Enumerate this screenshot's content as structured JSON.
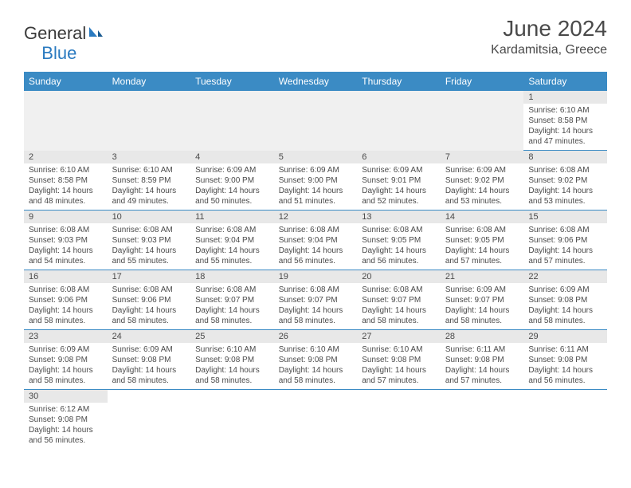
{
  "header": {
    "logo_general": "General",
    "logo_blue": "Blue",
    "month_year": "June 2024",
    "location": "Kardamitsia, Greece"
  },
  "colors": {
    "header_bg": "#3b8bc4",
    "header_text": "#ffffff",
    "daynum_bg": "#e8e8e8",
    "border": "#3b8bc4",
    "text": "#4a4a4a",
    "logo_general": "#3a3a3a",
    "logo_blue": "#2a7ac0"
  },
  "day_labels": [
    "Sunday",
    "Monday",
    "Tuesday",
    "Wednesday",
    "Thursday",
    "Friday",
    "Saturday"
  ],
  "weeks": [
    [
      null,
      null,
      null,
      null,
      null,
      null,
      {
        "num": "1",
        "sunrise": "6:10 AM",
        "sunset": "8:58 PM",
        "daylight_hours": "14",
        "daylight_mins": "47"
      }
    ],
    [
      {
        "num": "2",
        "sunrise": "6:10 AM",
        "sunset": "8:58 PM",
        "daylight_hours": "14",
        "daylight_mins": "48"
      },
      {
        "num": "3",
        "sunrise": "6:10 AM",
        "sunset": "8:59 PM",
        "daylight_hours": "14",
        "daylight_mins": "49"
      },
      {
        "num": "4",
        "sunrise": "6:09 AM",
        "sunset": "9:00 PM",
        "daylight_hours": "14",
        "daylight_mins": "50"
      },
      {
        "num": "5",
        "sunrise": "6:09 AM",
        "sunset": "9:00 PM",
        "daylight_hours": "14",
        "daylight_mins": "51"
      },
      {
        "num": "6",
        "sunrise": "6:09 AM",
        "sunset": "9:01 PM",
        "daylight_hours": "14",
        "daylight_mins": "52"
      },
      {
        "num": "7",
        "sunrise": "6:09 AM",
        "sunset": "9:02 PM",
        "daylight_hours": "14",
        "daylight_mins": "53"
      },
      {
        "num": "8",
        "sunrise": "6:08 AM",
        "sunset": "9:02 PM",
        "daylight_hours": "14",
        "daylight_mins": "53"
      }
    ],
    [
      {
        "num": "9",
        "sunrise": "6:08 AM",
        "sunset": "9:03 PM",
        "daylight_hours": "14",
        "daylight_mins": "54"
      },
      {
        "num": "10",
        "sunrise": "6:08 AM",
        "sunset": "9:03 PM",
        "daylight_hours": "14",
        "daylight_mins": "55"
      },
      {
        "num": "11",
        "sunrise": "6:08 AM",
        "sunset": "9:04 PM",
        "daylight_hours": "14",
        "daylight_mins": "55"
      },
      {
        "num": "12",
        "sunrise": "6:08 AM",
        "sunset": "9:04 PM",
        "daylight_hours": "14",
        "daylight_mins": "56"
      },
      {
        "num": "13",
        "sunrise": "6:08 AM",
        "sunset": "9:05 PM",
        "daylight_hours": "14",
        "daylight_mins": "56"
      },
      {
        "num": "14",
        "sunrise": "6:08 AM",
        "sunset": "9:05 PM",
        "daylight_hours": "14",
        "daylight_mins": "57"
      },
      {
        "num": "15",
        "sunrise": "6:08 AM",
        "sunset": "9:06 PM",
        "daylight_hours": "14",
        "daylight_mins": "57"
      }
    ],
    [
      {
        "num": "16",
        "sunrise": "6:08 AM",
        "sunset": "9:06 PM",
        "daylight_hours": "14",
        "daylight_mins": "58"
      },
      {
        "num": "17",
        "sunrise": "6:08 AM",
        "sunset": "9:06 PM",
        "daylight_hours": "14",
        "daylight_mins": "58"
      },
      {
        "num": "18",
        "sunrise": "6:08 AM",
        "sunset": "9:07 PM",
        "daylight_hours": "14",
        "daylight_mins": "58"
      },
      {
        "num": "19",
        "sunrise": "6:08 AM",
        "sunset": "9:07 PM",
        "daylight_hours": "14",
        "daylight_mins": "58"
      },
      {
        "num": "20",
        "sunrise": "6:08 AM",
        "sunset": "9:07 PM",
        "daylight_hours": "14",
        "daylight_mins": "58"
      },
      {
        "num": "21",
        "sunrise": "6:09 AM",
        "sunset": "9:07 PM",
        "daylight_hours": "14",
        "daylight_mins": "58"
      },
      {
        "num": "22",
        "sunrise": "6:09 AM",
        "sunset": "9:08 PM",
        "daylight_hours": "14",
        "daylight_mins": "58"
      }
    ],
    [
      {
        "num": "23",
        "sunrise": "6:09 AM",
        "sunset": "9:08 PM",
        "daylight_hours": "14",
        "daylight_mins": "58"
      },
      {
        "num": "24",
        "sunrise": "6:09 AM",
        "sunset": "9:08 PM",
        "daylight_hours": "14",
        "daylight_mins": "58"
      },
      {
        "num": "25",
        "sunrise": "6:10 AM",
        "sunset": "9:08 PM",
        "daylight_hours": "14",
        "daylight_mins": "58"
      },
      {
        "num": "26",
        "sunrise": "6:10 AM",
        "sunset": "9:08 PM",
        "daylight_hours": "14",
        "daylight_mins": "58"
      },
      {
        "num": "27",
        "sunrise": "6:10 AM",
        "sunset": "9:08 PM",
        "daylight_hours": "14",
        "daylight_mins": "57"
      },
      {
        "num": "28",
        "sunrise": "6:11 AM",
        "sunset": "9:08 PM",
        "daylight_hours": "14",
        "daylight_mins": "57"
      },
      {
        "num": "29",
        "sunrise": "6:11 AM",
        "sunset": "9:08 PM",
        "daylight_hours": "14",
        "daylight_mins": "56"
      }
    ],
    [
      {
        "num": "30",
        "sunrise": "6:12 AM",
        "sunset": "9:08 PM",
        "daylight_hours": "14",
        "daylight_mins": "56"
      },
      null,
      null,
      null,
      null,
      null,
      null
    ]
  ],
  "labels": {
    "sunrise": "Sunrise:",
    "sunset": "Sunset:",
    "daylight_prefix": "Daylight:",
    "hours_word": "hours",
    "and_word": "and",
    "minutes_word": "minutes."
  }
}
